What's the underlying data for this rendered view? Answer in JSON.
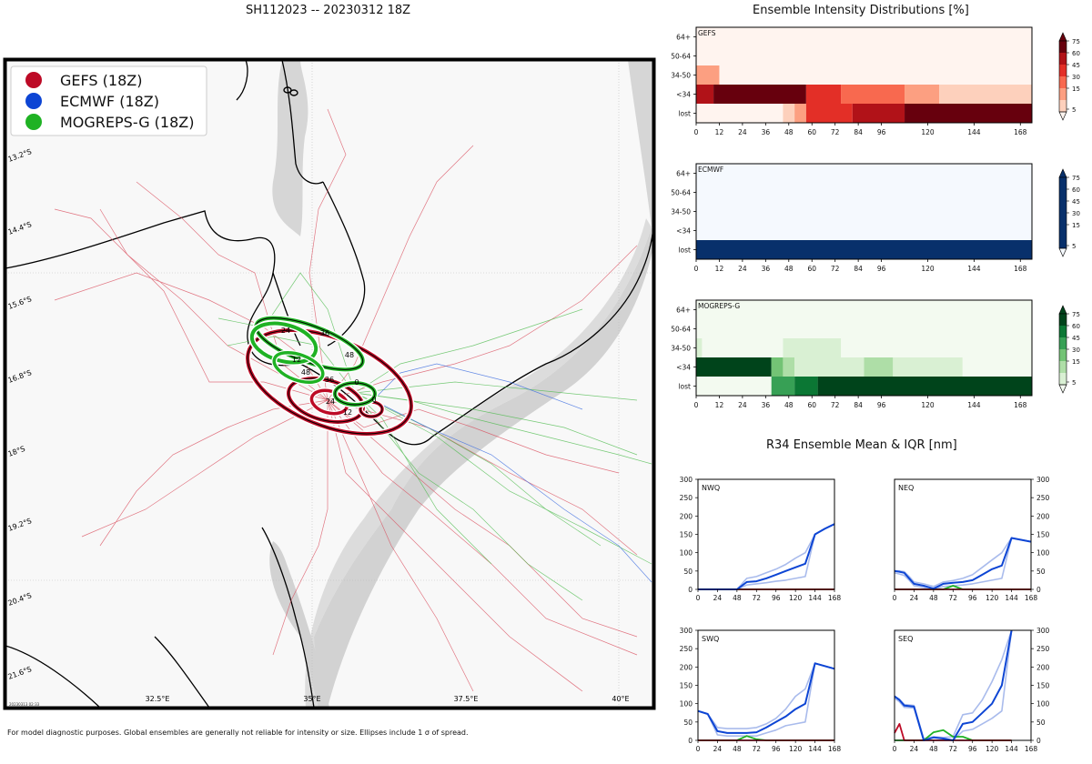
{
  "map": {
    "title": "SH112023 -- 20230312 18Z",
    "lat_labels": [
      "13.2°S",
      "14.4°S",
      "15.6°S",
      "16.8°S",
      "18°S",
      "19.2°S",
      "20.4°S",
      "21.6°S"
    ],
    "lon_labels": [
      "32.5°E",
      "35°E",
      "37.5°E",
      "40°E"
    ],
    "stamp": "20230313 02:33",
    "legend": [
      {
        "label": "GEFS (18Z)",
        "color": "#bd0a26"
      },
      {
        "label": "ECMWF (18Z)",
        "color": "#0d45d4"
      },
      {
        "label": "MOGREPS-G (18Z)",
        "color": "#1fb224"
      }
    ],
    "gefs_tau_labels": [
      "0",
      "12",
      "24",
      "36",
      "48"
    ],
    "mog_tau_labels": [
      "0",
      "12",
      "24",
      "36",
      "48"
    ]
  },
  "intensity": {
    "title": "Ensemble Intensity Distributions [%]",
    "rows": [
      "64+",
      "50-64",
      "34-50",
      "<34",
      "lost"
    ],
    "ticks": [
      0,
      12,
      24,
      36,
      48,
      60,
      72,
      84,
      96,
      120,
      144,
      168
    ],
    "cbar_ticks": [
      75,
      60,
      45,
      30,
      15,
      5
    ],
    "panels": [
      {
        "name": "GEFS",
        "colors": {
          "bg": "#fff4ef",
          "c1": "#fdd0bc",
          "c2": "#fc9f81",
          "c3": "#f8694f",
          "c4": "#e32f27",
          "c5": "#b11218",
          "c6": "#67000d"
        },
        "cells": [
          {
            "row": 2,
            "t0": 0,
            "t1": 12,
            "c": "c2"
          },
          {
            "row": 3,
            "t0": 0,
            "t1": 9,
            "c": "c5"
          },
          {
            "row": 3,
            "t0": 9,
            "t1": 57,
            "c": "c6"
          },
          {
            "row": 3,
            "t0": 57,
            "t1": 75,
            "c": "c4"
          },
          {
            "row": 3,
            "t0": 75,
            "t1": 108,
            "c": "c3"
          },
          {
            "row": 3,
            "t0": 108,
            "t1": 126,
            "c": "c2"
          },
          {
            "row": 3,
            "t0": 126,
            "t1": 174,
            "c": "c1"
          },
          {
            "row": 4,
            "t0": 45,
            "t1": 51,
            "c": "c1"
          },
          {
            "row": 4,
            "t0": 51,
            "t1": 57,
            "c": "c2"
          },
          {
            "row": 4,
            "t0": 57,
            "t1": 81,
            "c": "c4"
          },
          {
            "row": 4,
            "t0": 81,
            "t1": 108,
            "c": "c5"
          },
          {
            "row": 4,
            "t0": 108,
            "t1": 174,
            "c": "c6"
          }
        ]
      },
      {
        "name": "ECMWF",
        "colors": {
          "bg": "#f5f9fe",
          "c6": "#08306b"
        },
        "cells": [
          {
            "row": 4,
            "t0": 0,
            "t1": 174,
            "c": "c6"
          }
        ]
      },
      {
        "name": "MOGREPS-G",
        "colors": {
          "bg": "#f3faf0",
          "c1": "#d9f0d3",
          "c2": "#aedea7",
          "c3": "#73c375",
          "c4": "#37a055",
          "c5": "#0b7734",
          "c6": "#00441b"
        },
        "cells": [
          {
            "row": 2,
            "t0": 0,
            "t1": 3,
            "c": "c1"
          },
          {
            "row": 2,
            "t0": 45,
            "t1": 75,
            "c": "c1"
          },
          {
            "row": 3,
            "t0": 0,
            "t1": 39,
            "c": "c6"
          },
          {
            "row": 3,
            "t0": 39,
            "t1": 45,
            "c": "c3"
          },
          {
            "row": 3,
            "t0": 45,
            "t1": 51,
            "c": "c2"
          },
          {
            "row": 3,
            "t0": 51,
            "t1": 87,
            "c": "c1"
          },
          {
            "row": 3,
            "t0": 87,
            "t1": 102,
            "c": "c2"
          },
          {
            "row": 3,
            "t0": 102,
            "t1": 138,
            "c": "c1"
          },
          {
            "row": 4,
            "t0": 39,
            "t1": 51,
            "c": "c4"
          },
          {
            "row": 4,
            "t0": 51,
            "t1": 63,
            "c": "c5"
          },
          {
            "row": 4,
            "t0": 63,
            "t1": 174,
            "c": "c6"
          }
        ]
      }
    ]
  },
  "r34": {
    "title": "R34 Ensemble Mean & IQR [nm]",
    "xticks": [
      0,
      24,
      48,
      72,
      96,
      120,
      144,
      168
    ],
    "yticks": [
      0,
      50,
      100,
      150,
      200,
      250,
      300
    ]
  },
  "chart_data": [
    {
      "type": "line",
      "title": "NWQ",
      "x": [
        0,
        12,
        24,
        36,
        48,
        60,
        72,
        84,
        96,
        108,
        120,
        132,
        144,
        156,
        168
      ],
      "ylim": [
        0,
        300
      ],
      "series": [
        {
          "name": "ECMWF mean",
          "values": [
            0,
            0,
            0,
            0,
            0,
            20,
            22,
            30,
            40,
            50,
            60,
            70,
            150,
            165,
            178
          ]
        },
        {
          "name": "ECMWF IQR high",
          "values": [
            0,
            0,
            0,
            0,
            0,
            30,
            35,
            45,
            55,
            68,
            85,
            100,
            150,
            165,
            178
          ]
        },
        {
          "name": "ECMWF IQR low",
          "values": [
            0,
            0,
            0,
            0,
            0,
            12,
            15,
            18,
            22,
            25,
            30,
            35,
            150,
            165,
            178
          ]
        },
        {
          "name": "GEFS mean",
          "values": [
            0,
            0,
            0,
            0,
            0,
            0,
            0,
            0,
            0,
            0,
            0,
            0,
            0,
            0,
            0
          ]
        },
        {
          "name": "MOGREPS-G mean",
          "values": [
            0,
            0,
            0,
            0,
            0,
            0,
            0,
            0,
            0,
            0,
            0,
            0,
            0,
            0,
            0
          ]
        }
      ]
    },
    {
      "type": "line",
      "title": "NEQ",
      "x": [
        0,
        6,
        12,
        18,
        24,
        36,
        48,
        60,
        72,
        84,
        96,
        108,
        120,
        132,
        144,
        168
      ],
      "ylim": [
        0,
        300
      ],
      "series": [
        {
          "name": "ECMWF mean",
          "values": [
            50,
            48,
            45,
            30,
            15,
            10,
            2,
            15,
            18,
            20,
            25,
            40,
            55,
            65,
            140,
            130
          ]
        },
        {
          "name": "ECMWF IQR high",
          "values": [
            50,
            50,
            48,
            35,
            20,
            15,
            8,
            20,
            24,
            30,
            40,
            60,
            80,
            100,
            140,
            130
          ]
        },
        {
          "name": "ECMWF IQR low",
          "values": [
            45,
            42,
            38,
            25,
            10,
            5,
            0,
            8,
            10,
            12,
            15,
            20,
            25,
            30,
            140,
            130
          ]
        },
        {
          "name": "GEFS mean",
          "values": [
            0,
            0,
            0,
            0,
            0,
            0,
            0,
            0,
            0,
            0,
            0,
            0,
            0,
            0,
            0,
            0
          ]
        },
        {
          "name": "MOGREPS-G mean",
          "values": [
            0,
            0,
            0,
            0,
            0,
            0,
            0,
            0,
            10,
            0,
            0,
            0,
            0,
            0,
            0,
            0
          ]
        }
      ]
    },
    {
      "type": "line",
      "title": "SWQ",
      "x": [
        0,
        12,
        24,
        36,
        48,
        60,
        72,
        84,
        96,
        108,
        120,
        132,
        144,
        168
      ],
      "ylim": [
        0,
        300
      ],
      "series": [
        {
          "name": "ECMWF mean",
          "values": [
            80,
            72,
            25,
            20,
            20,
            20,
            22,
            35,
            50,
            65,
            85,
            100,
            210,
            195
          ]
        },
        {
          "name": "ECMWF IQR high",
          "values": [
            80,
            72,
            35,
            32,
            32,
            32,
            35,
            45,
            60,
            85,
            120,
            140,
            210,
            195
          ]
        },
        {
          "name": "ECMWF IQR low",
          "values": [
            80,
            72,
            15,
            12,
            12,
            12,
            12,
            20,
            28,
            40,
            45,
            50,
            210,
            195
          ]
        },
        {
          "name": "GEFS mean",
          "values": [
            0,
            0,
            0,
            0,
            0,
            0,
            0,
            0,
            0,
            0,
            0,
            0,
            0,
            0
          ]
        },
        {
          "name": "MOGREPS-G mean",
          "values": [
            0,
            0,
            0,
            0,
            0,
            12,
            3,
            0,
            0,
            0,
            0,
            0,
            0,
            0
          ]
        }
      ]
    },
    {
      "type": "line",
      "title": "SEQ",
      "x": [
        0,
        6,
        12,
        24,
        36,
        48,
        60,
        72,
        84,
        96,
        108,
        120,
        132,
        144
      ],
      "ylim": [
        0,
        300
      ],
      "series": [
        {
          "name": "ECMWF mean",
          "values": [
            120,
            110,
            95,
            92,
            0,
            8,
            5,
            0,
            45,
            50,
            75,
            100,
            150,
            300
          ]
        },
        {
          "name": "ECMWF IQR high",
          "values": [
            120,
            112,
            98,
            95,
            5,
            10,
            8,
            10,
            70,
            75,
            110,
            160,
            220,
            300
          ]
        },
        {
          "name": "ECMWF IQR low",
          "values": [
            115,
            105,
            90,
            88,
            0,
            0,
            0,
            0,
            25,
            30,
            45,
            60,
            80,
            300
          ]
        },
        {
          "name": "GEFS mean",
          "values": [
            20,
            45,
            0,
            0,
            0,
            0,
            0,
            0,
            0,
            0,
            0,
            0,
            0,
            0
          ]
        },
        {
          "name": "MOGREPS-G mean",
          "values": [
            0,
            0,
            0,
            0,
            0,
            22,
            28,
            10,
            10,
            0,
            0,
            0,
            0,
            0
          ]
        }
      ]
    }
  ],
  "footnote": "For model diagnostic purposes. Global ensembles are generally not reliable for intensity or size. Ellipses include 1 σ of spread."
}
